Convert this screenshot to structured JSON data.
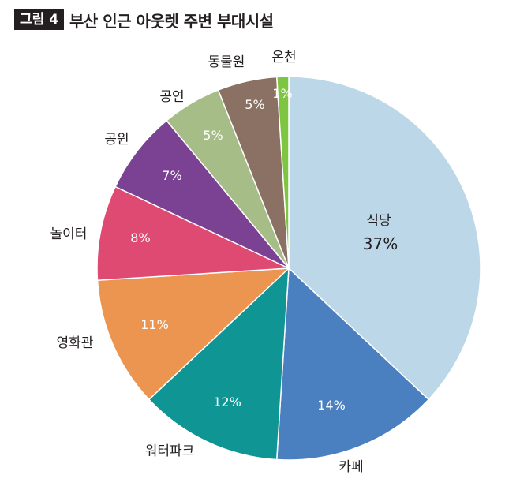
{
  "figure_badge": "그림 4",
  "title": "부산 인근 아웃렛 주변 부대시설",
  "chart_data": {
    "type": "pie",
    "title": "부산 인근 아웃렛 주변 부대시설",
    "slices": [
      {
        "label": "식당",
        "value": 37,
        "display": "37%",
        "color": "#bcd7e8"
      },
      {
        "label": "카페",
        "value": 14,
        "display": "14%",
        "color": "#4a7fc0"
      },
      {
        "label": "워터파크",
        "value": 12,
        "display": "12%",
        "color": "#0e9594"
      },
      {
        "label": "영화관",
        "value": 11,
        "display": "11%",
        "color": "#ec9550"
      },
      {
        "label": "놀이터",
        "value": 8,
        "display": "8%",
        "color": "#df4a72"
      },
      {
        "label": "공원",
        "value": 7,
        "display": "7%",
        "color": "#7b4294"
      },
      {
        "label": "공연",
        "value": 5,
        "display": "5%",
        "color": "#a7bd88"
      },
      {
        "label": "동물원",
        "value": 5,
        "display": "5%",
        "color": "#8b7163"
      },
      {
        "label": "온천",
        "value": 1,
        "display": "1%",
        "color": "#7ec642"
      }
    ]
  }
}
